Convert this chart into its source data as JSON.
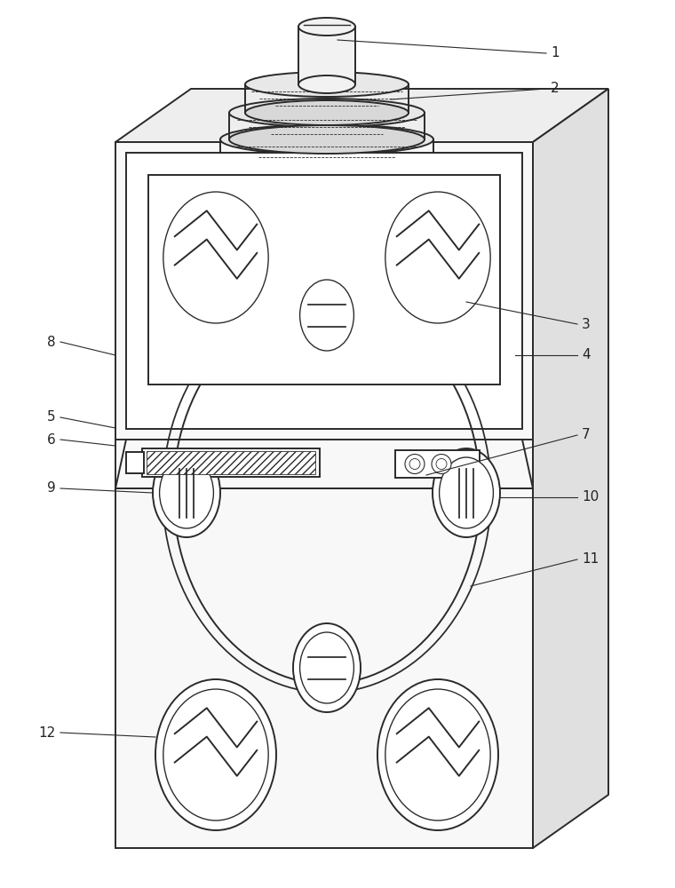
{
  "bg_color": "#ffffff",
  "line_color": "#2a2a2a",
  "line_width": 1.4,
  "fig_w": 7.6,
  "fig_h": 10.0,
  "dpi": 100,
  "label_fontsize": 11,
  "label_color": "#222222",
  "body_face": "#f8f8f8",
  "side_face": "#e0e0e0",
  "top_face": "#eeeeee",
  "disc_face": "#e8e8e8",
  "disc_face2": "#d8d8d8",
  "cyl_face": "#f2f2f2"
}
